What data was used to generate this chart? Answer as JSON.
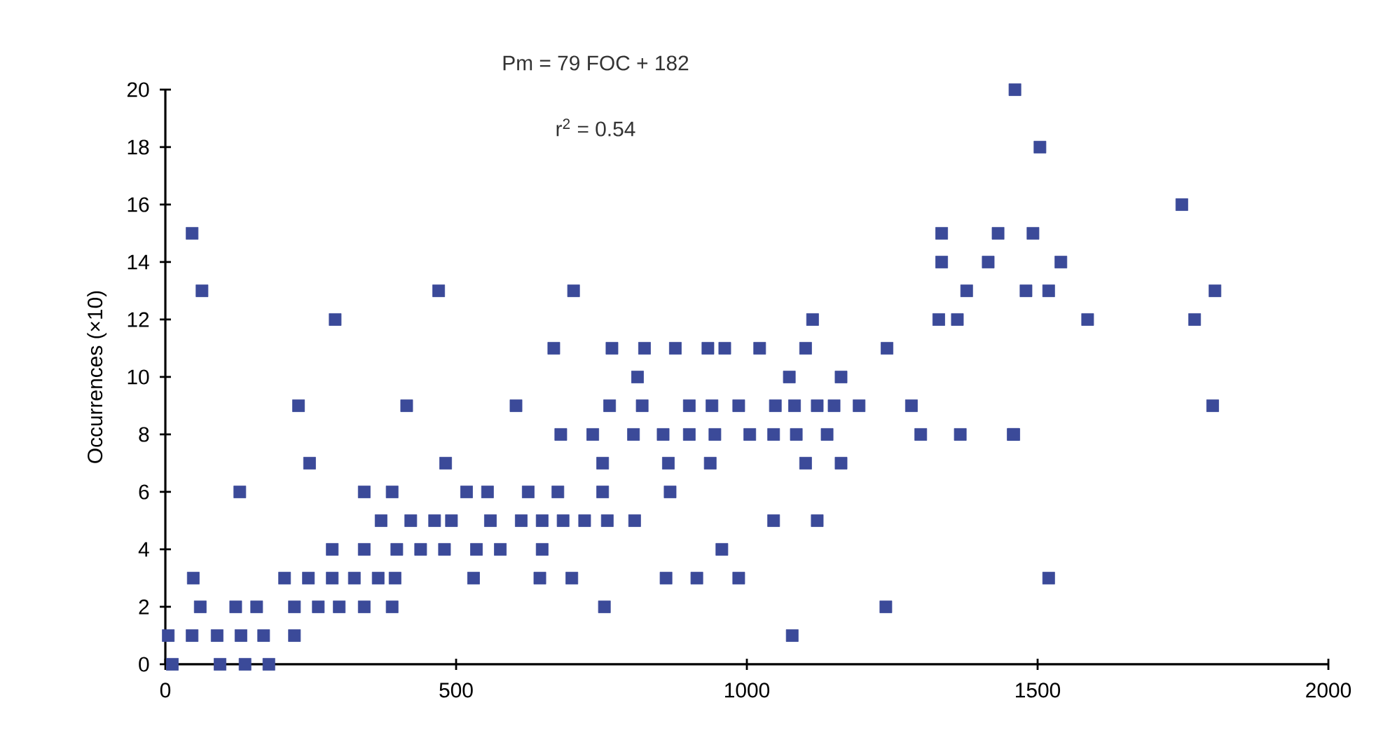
{
  "chart_data": {
    "type": "scatter",
    "ylabel": "Occurrences (×10)",
    "annotations": [
      "Pm = 79 FOC + 182",
      "r$^{2}$ = 0.54"
    ],
    "marker": "square",
    "x": [
      1461,
      1504,
      1748,
      46,
      1335,
      1432,
      1492,
      1335,
      1415,
      1540,
      63,
      470,
      702,
      1378,
      1480,
      1519,
      1805,
      292,
      1113,
      1330,
      1362,
      1586,
      1770,
      668,
      768,
      824,
      877,
      933,
      962,
      1022,
      1101,
      1241,
      812,
      1073,
      1162,
      229,
      415,
      603,
      764,
      820,
      901,
      940,
      986,
      1049,
      1082,
      1121,
      1150,
      1193,
      1283,
      1801,
      680,
      735,
      805,
      856,
      901,
      945,
      1005,
      1046,
      1085,
      1138,
      1299,
      1367,
      1458,
      1459,
      248,
      482,
      752,
      865,
      937,
      1101,
      1162,
      128,
      342,
      390,
      518,
      554,
      624,
      675,
      752,
      868,
      371,
      422,
      463,
      492,
      559,
      612,
      648,
      684,
      721,
      760,
      807,
      1046,
      1121,
      287,
      342,
      398,
      439,
      480,
      535,
      576,
      648,
      957,
      48,
      205,
      246,
      287,
      325,
      366,
      395,
      530,
      644,
      699,
      861,
      914,
      986,
      1519,
      60,
      121,
      157,
      222,
      263,
      299,
      342,
      390,
      755,
      1239,
      5,
      46,
      89,
      130,
      169,
      222,
      1078,
      12,
      94,
      137,
      178
    ],
    "values": [
      20,
      18,
      16,
      15,
      15,
      15,
      15,
      14,
      14,
      14,
      13,
      13,
      13,
      13,
      13,
      13,
      13,
      12,
      12,
      12,
      12,
      12,
      12,
      11,
      11,
      11,
      11,
      11,
      11,
      11,
      11,
      11,
      10,
      10,
      10,
      9,
      9,
      9,
      9,
      9,
      9,
      9,
      9,
      9,
      9,
      9,
      9,
      9,
      9,
      9,
      8,
      8,
      8,
      8,
      8,
      8,
      8,
      8,
      8,
      8,
      8,
      8,
      8,
      8,
      7,
      7,
      7,
      7,
      7,
      7,
      7,
      6,
      6,
      6,
      6,
      6,
      6,
      6,
      6,
      6,
      5,
      5,
      5,
      5,
      5,
      5,
      5,
      5,
      5,
      5,
      5,
      5,
      5,
      4,
      4,
      4,
      4,
      4,
      4,
      4,
      4,
      4,
      3,
      3,
      3,
      3,
      3,
      3,
      3,
      3,
      3,
      3,
      3,
      3,
      3,
      3,
      2,
      2,
      2,
      2,
      2,
      2,
      2,
      2,
      2,
      2,
      1,
      1,
      1,
      1,
      1,
      1,
      1,
      0,
      0,
      0,
      0
    ],
    "color": "#3b4a99",
    "xlim": [
      0,
      2000
    ],
    "ylim": [
      0,
      20
    ],
    "xticks": [
      0,
      500,
      1000,
      1500,
      2000
    ],
    "yticks": [
      0,
      2,
      4,
      6,
      8,
      10,
      12,
      14,
      16,
      18,
      20
    ]
  }
}
